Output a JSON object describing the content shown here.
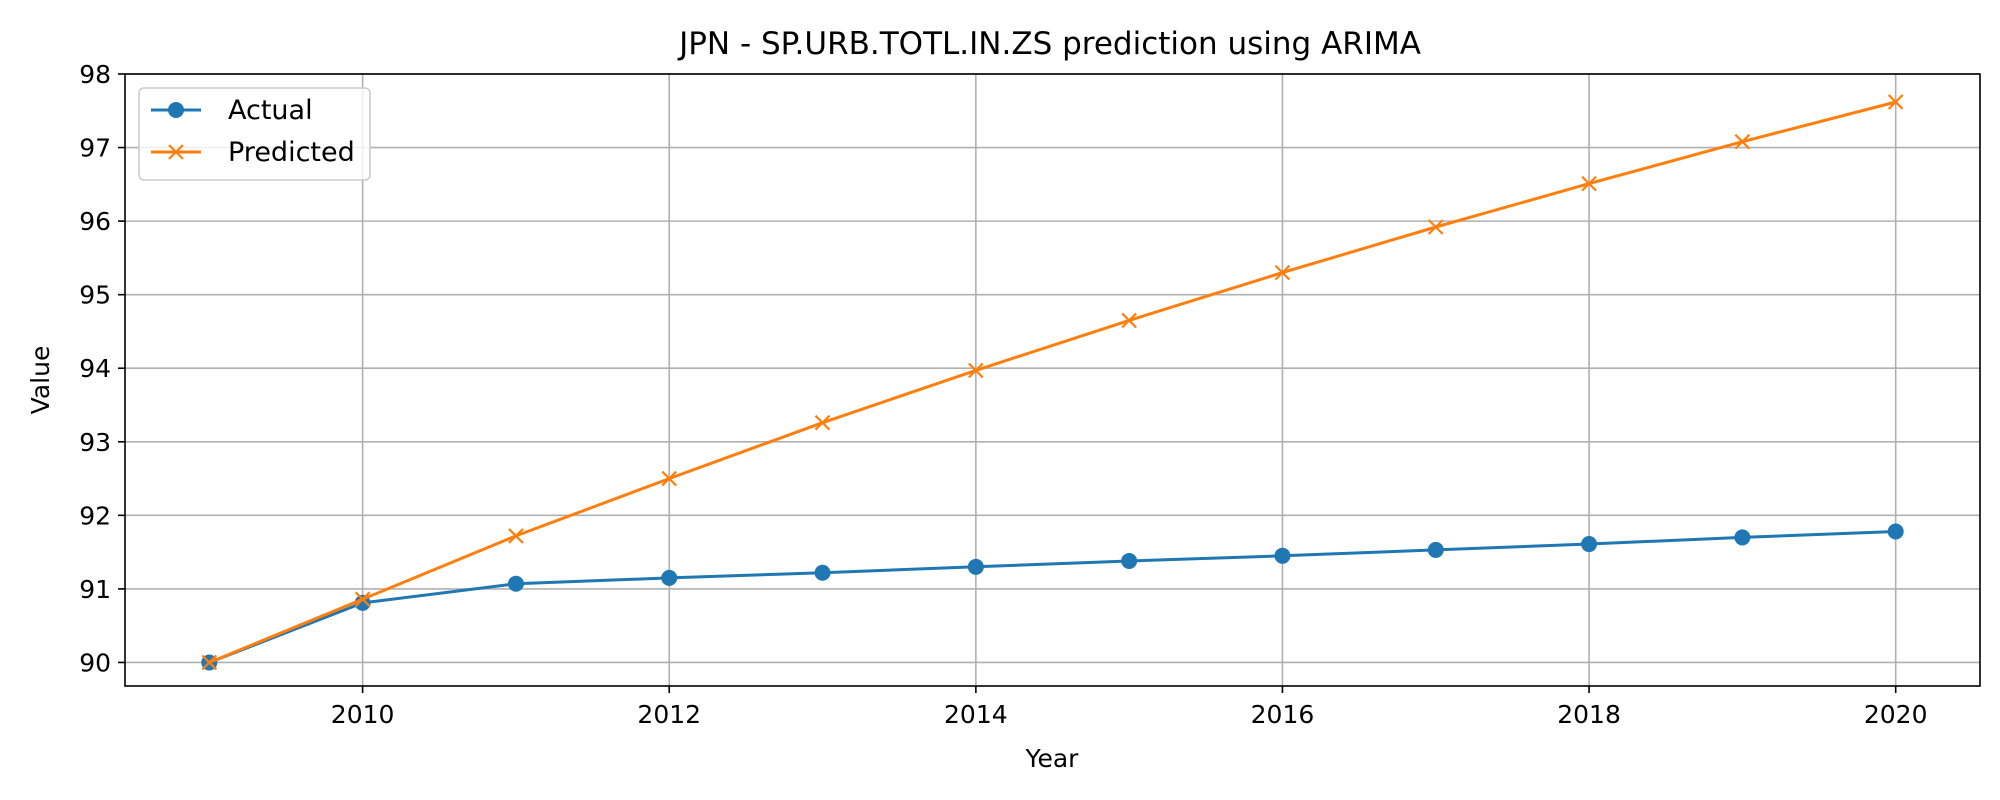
{
  "chart_data": {
    "type": "line",
    "title": "JPN - SP.URB.TOTL.IN.ZS prediction using ARIMA",
    "xlabel": "Year",
    "ylabel": "Value",
    "x": [
      2009,
      2010,
      2011,
      2012,
      2013,
      2014,
      2015,
      2016,
      2017,
      2018,
      2019,
      2020
    ],
    "xlim": [
      2008.45,
      2020.55
    ],
    "ylim": [
      89.68,
      98.0
    ],
    "xticks": [
      2010,
      2012,
      2014,
      2016,
      2018,
      2020
    ],
    "yticks": [
      90,
      91,
      92,
      93,
      94,
      95,
      96,
      97,
      98
    ],
    "grid": true,
    "legend_position": "top-left",
    "series": [
      {
        "name": "Actual",
        "color": "#1f77b4",
        "marker": "circle",
        "values": [
          90.0,
          90.81,
          91.07,
          91.15,
          91.22,
          91.3,
          91.38,
          91.45,
          91.53,
          91.61,
          91.7,
          91.78
        ]
      },
      {
        "name": "Predicted",
        "color": "#ff7f0e",
        "marker": "x",
        "values": [
          90.0,
          90.86,
          91.72,
          92.5,
          93.26,
          93.97,
          94.65,
          95.3,
          95.92,
          96.51,
          97.08,
          97.62
        ]
      }
    ]
  }
}
